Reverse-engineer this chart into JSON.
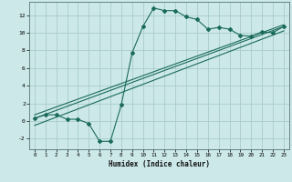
{
  "xlabel": "Humidex (Indice chaleur)",
  "bg_color": "#cce8e8",
  "grid_color": "#aacccc",
  "line_color": "#1a6b5a",
  "xlim": [
    -0.5,
    23.5
  ],
  "ylim": [
    -3.2,
    13.5
  ],
  "xticks": [
    0,
    1,
    2,
    3,
    4,
    5,
    6,
    7,
    8,
    9,
    10,
    11,
    12,
    13,
    14,
    15,
    16,
    17,
    18,
    19,
    20,
    21,
    22,
    23
  ],
  "yticks": [
    -2,
    0,
    2,
    4,
    6,
    8,
    10,
    12
  ],
  "line1_x": [
    0,
    1,
    2,
    3,
    4,
    5,
    6,
    7,
    8,
    9,
    10,
    11,
    12,
    13,
    14,
    15,
    16,
    17,
    18,
    19,
    20,
    21,
    22,
    23
  ],
  "line1_y": [
    0.3,
    0.7,
    0.7,
    0.2,
    0.2,
    -0.3,
    -2.3,
    -2.3,
    1.8,
    7.7,
    10.7,
    12.8,
    12.5,
    12.5,
    11.8,
    11.5,
    10.4,
    10.6,
    10.4,
    9.7,
    9.6,
    10.1,
    10.0,
    10.7
  ],
  "line2_x": [
    0,
    23
  ],
  "line2_y": [
    0.3,
    10.7
  ],
  "line3_x": [
    0,
    23
  ],
  "line3_y": [
    -0.5,
    10.2
  ],
  "line4_x": [
    0,
    23
  ],
  "line4_y": [
    0.7,
    10.9
  ]
}
